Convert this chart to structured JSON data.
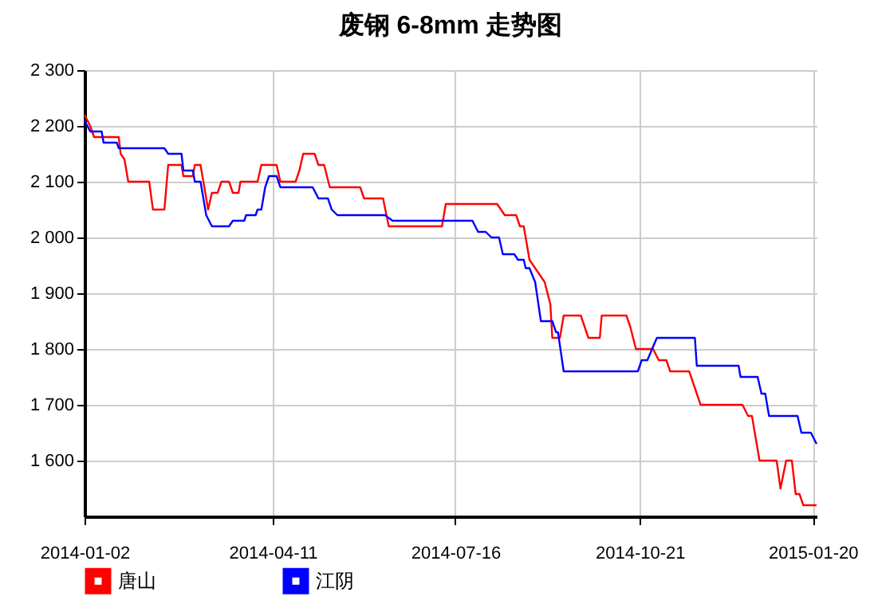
{
  "chart_data": {
    "type": "line",
    "title": "废钢 6-8mm 走势图",
    "xlim": [
      "2014-01-02",
      "2015-01-22"
    ],
    "xticks": [
      "2014-01-02",
      "2014-04-11",
      "2014-07-16",
      "2014-10-21",
      "2015-01-20"
    ],
    "ylim": [
      1500,
      2300
    ],
    "yticks": [
      {
        "value": 1600,
        "label": "1 600"
      },
      {
        "value": 1700,
        "label": "1 700"
      },
      {
        "value": 1800,
        "label": "1 800"
      },
      {
        "value": 1900,
        "label": "1 900"
      },
      {
        "value": 2000,
        "label": "2 000"
      },
      {
        "value": 2100,
        "label": "2 100"
      },
      {
        "value": 2200,
        "label": "2 200"
      },
      {
        "value": 2300,
        "label": "2 300"
      }
    ],
    "grid": true,
    "legend": "bottom",
    "marker": "none",
    "line_style": "solid",
    "series": [
      {
        "name": "唐山",
        "color": "#ff0000",
        "x": [
          "2014-01-02",
          "2014-01-05",
          "2014-01-07",
          "2014-01-20",
          "2014-01-21",
          "2014-01-23",
          "2014-01-25",
          "2014-02-05",
          "2014-02-07",
          "2014-02-13",
          "2014-02-15",
          "2014-02-22",
          "2014-02-23",
          "2014-02-28",
          "2014-03-01",
          "2014-03-04",
          "2014-03-08",
          "2014-03-10",
          "2014-03-13",
          "2014-03-15",
          "2014-03-19",
          "2014-03-21",
          "2014-03-24",
          "2014-03-25",
          "2014-04-03",
          "2014-04-05",
          "2014-04-13",
          "2014-04-15",
          "2014-04-23",
          "2014-04-25",
          "2014-04-27",
          "2014-05-03",
          "2014-05-05",
          "2014-05-08",
          "2014-05-11",
          "2014-05-27",
          "2014-05-29",
          "2014-06-08",
          "2014-06-11",
          "2014-07-09",
          "2014-07-11",
          "2014-08-07",
          "2014-08-11",
          "2014-08-17",
          "2014-08-19",
          "2014-08-21",
          "2014-08-24",
          "2014-08-28",
          "2014-09-01",
          "2014-09-04",
          "2014-09-05",
          "2014-09-09",
          "2014-09-11",
          "2014-09-20",
          "2014-09-24",
          "2014-09-30",
          "2014-10-01",
          "2014-10-14",
          "2014-10-16",
          "2014-10-19",
          "2014-10-28",
          "2014-10-31",
          "2014-11-04",
          "2014-11-06",
          "2014-11-16",
          "2014-11-18",
          "2014-11-22",
          "2014-12-14",
          "2014-12-17",
          "2014-12-19",
          "2014-12-23",
          "2015-01-01",
          "2015-01-03",
          "2015-01-06",
          "2015-01-09",
          "2015-01-11",
          "2015-01-13",
          "2015-01-15",
          "2015-01-22"
        ],
        "values": [
          2220,
          2200,
          2180,
          2180,
          2150,
          2140,
          2100,
          2100,
          2050,
          2050,
          2130,
          2130,
          2110,
          2110,
          2130,
          2130,
          2050,
          2080,
          2080,
          2100,
          2100,
          2080,
          2080,
          2100,
          2100,
          2130,
          2130,
          2100,
          2100,
          2120,
          2150,
          2150,
          2130,
          2130,
          2090,
          2090,
          2070,
          2070,
          2020,
          2020,
          2060,
          2060,
          2040,
          2040,
          2020,
          2020,
          1960,
          1940,
          1920,
          1880,
          1820,
          1820,
          1860,
          1860,
          1820,
          1820,
          1860,
          1860,
          1840,
          1800,
          1800,
          1780,
          1780,
          1760,
          1760,
          1740,
          1700,
          1700,
          1680,
          1680,
          1600,
          1600,
          1550,
          1600,
          1600,
          1540,
          1540,
          1520,
          1520
        ]
      },
      {
        "name": "江阴",
        "color": "#0000ff",
        "x": [
          "2014-01-02",
          "2014-01-05",
          "2014-01-11",
          "2014-01-12",
          "2014-01-19",
          "2014-01-20",
          "2014-02-13",
          "2014-02-15",
          "2014-02-22",
          "2014-02-23",
          "2014-02-28",
          "2014-03-01",
          "2014-03-04",
          "2014-03-07",
          "2014-03-10",
          "2014-03-19",
          "2014-03-21",
          "2014-03-27",
          "2014-03-28",
          "2014-04-02",
          "2014-04-03",
          "2014-04-05",
          "2014-04-07",
          "2014-04-09",
          "2014-04-13",
          "2014-04-15",
          "2014-05-02",
          "2014-05-05",
          "2014-05-10",
          "2014-05-12",
          "2014-05-15",
          "2014-06-09",
          "2014-06-13",
          "2014-07-25",
          "2014-07-28",
          "2014-08-01",
          "2014-08-04",
          "2014-08-08",
          "2014-08-10",
          "2014-08-16",
          "2014-08-18",
          "2014-08-21",
          "2014-08-22",
          "2014-08-24",
          "2014-08-27",
          "2014-08-30",
          "2014-09-05",
          "2014-09-07",
          "2014-09-08",
          "2014-09-11",
          "2014-10-20",
          "2014-10-22",
          "2014-10-25",
          "2014-10-30",
          "2014-11-19",
          "2014-11-20",
          "2014-12-12",
          "2014-12-13",
          "2014-12-22",
          "2014-12-24",
          "2014-12-26",
          "2014-12-28",
          "2015-01-12",
          "2015-01-14",
          "2015-01-19",
          "2015-01-22"
        ],
        "values": [
          2210,
          2190,
          2190,
          2170,
          2170,
          2160,
          2160,
          2150,
          2150,
          2120,
          2120,
          2100,
          2100,
          2040,
          2020,
          2020,
          2030,
          2030,
          2040,
          2040,
          2050,
          2050,
          2090,
          2110,
          2110,
          2090,
          2090,
          2070,
          2070,
          2050,
          2040,
          2040,
          2030,
          2030,
          2010,
          2010,
          2000,
          2000,
          1970,
          1970,
          1960,
          1960,
          1945,
          1945,
          1920,
          1850,
          1850,
          1830,
          1830,
          1760,
          1760,
          1780,
          1780,
          1820,
          1820,
          1770,
          1770,
          1750,
          1750,
          1720,
          1720,
          1680,
          1680,
          1650,
          1650,
          1630
        ]
      }
    ]
  }
}
